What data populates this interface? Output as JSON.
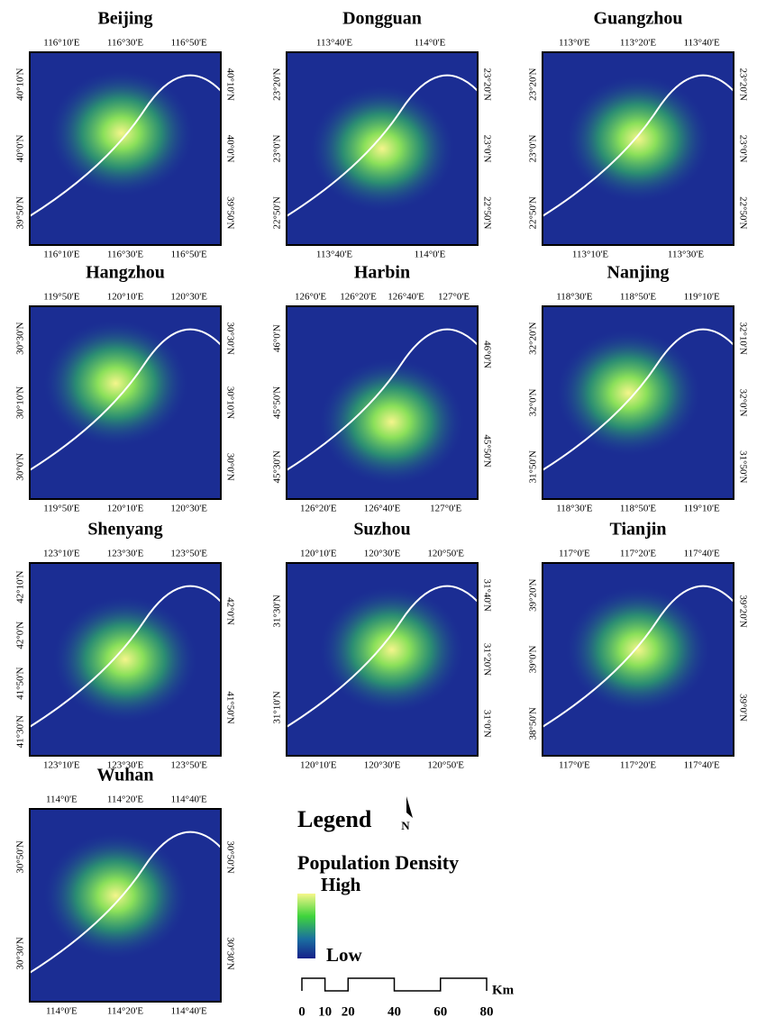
{
  "panels": [
    {
      "title": "Beijing",
      "top": [
        "116°10'E",
        "116°30'E",
        "116°50'E"
      ],
      "bottom": [
        "116°10'E",
        "116°30'E",
        "116°50'E"
      ],
      "left": [
        "40°10'N",
        "40°0'N",
        "39°50'N"
      ],
      "right": [
        "40°10'N",
        "40°0'N",
        "39°50'N"
      ]
    },
    {
      "title": "Dongguan",
      "top": [
        "113°40'E",
        "114°0'E"
      ],
      "bottom": [
        "113°40'E",
        "114°0'E"
      ],
      "left": [
        "23°20'N",
        "23°0'N",
        "22°50'N"
      ],
      "right": [
        "23°20'N",
        "23°0'N",
        "22°50'N"
      ]
    },
    {
      "title": "Guangzhou",
      "top": [
        "113°0'E",
        "113°20'E",
        "113°40'E"
      ],
      "bottom": [
        "113°10'E",
        "113°30'E"
      ],
      "left": [
        "23°20'N",
        "23°0'N",
        "22°50'N"
      ],
      "right": [
        "23°20'N",
        "23°0'N",
        "22°50'N"
      ]
    },
    {
      "title": "Hangzhou",
      "top": [
        "119°50'E",
        "120°10'E",
        "120°30'E"
      ],
      "bottom": [
        "119°50'E",
        "120°10'E",
        "120°30'E"
      ],
      "left": [
        "30°30'N",
        "30°10'N",
        "30°0'N"
      ],
      "right": [
        "30°30'N",
        "30°10'N",
        "30°0'N"
      ]
    },
    {
      "title": "Harbin",
      "top": [
        "126°0'E",
        "126°20'E",
        "126°40'E",
        "127°0'E"
      ],
      "bottom": [
        "126°20'E",
        "126°40'E",
        "127°0'E"
      ],
      "left": [
        "46°0'N",
        "45°50'N",
        "45°30'N"
      ],
      "right": [
        "46°0'N",
        "45°50'N"
      ]
    },
    {
      "title": "Nanjing",
      "top": [
        "118°30'E",
        "118°50'E",
        "119°10'E"
      ],
      "bottom": [
        "118°30'E",
        "118°50'E",
        "119°10'E"
      ],
      "left": [
        "32°20'N",
        "32°0'N",
        "31°50'N"
      ],
      "right": [
        "32°10'N",
        "32°0'N",
        "31°50'N"
      ]
    },
    {
      "title": "Shenyang",
      "top": [
        "123°10'E",
        "123°30'E",
        "123°50'E"
      ],
      "bottom": [
        "123°10'E",
        "123°30'E",
        "123°50'E"
      ],
      "left": [
        "42°10'N",
        "42°0'N",
        "41°50'N",
        "41°30'N"
      ],
      "right": [
        "42°0'N",
        "41°50'N"
      ]
    },
    {
      "title": "Suzhou",
      "top": [
        "120°10'E",
        "120°30'E",
        "120°50'E"
      ],
      "bottom": [
        "120°10'E",
        "120°30'E",
        "120°50'E"
      ],
      "left": [
        "31°30'N",
        "31°10'N"
      ],
      "right": [
        "31°40'N",
        "31°20'N",
        "31°0'N"
      ]
    },
    {
      "title": "Tianjin",
      "top": [
        "117°0'E",
        "117°20'E",
        "117°40'E"
      ],
      "bottom": [
        "117°0'E",
        "117°20'E",
        "117°40'E"
      ],
      "left": [
        "39°20'N",
        "39°0'N",
        "38°50'N"
      ],
      "right": [
        "39°20'N",
        "39°0'N"
      ]
    },
    {
      "title": "Wuhan",
      "top": [
        "114°0'E",
        "114°20'E",
        "114°40'E"
      ],
      "bottom": [
        "114°0'E",
        "114°20'E",
        "114°40'E"
      ],
      "left": [
        "30°50'N",
        "30°30'N"
      ],
      "right": [
        "30°50'N",
        "30°30'N"
      ]
    }
  ],
  "legend": {
    "title": "Legend",
    "north": "N",
    "variable": "Population Density",
    "high": "High",
    "low": "Low",
    "scale_unit": "Km",
    "scale_ticks": [
      0,
      10,
      20,
      40,
      60,
      80
    ]
  }
}
